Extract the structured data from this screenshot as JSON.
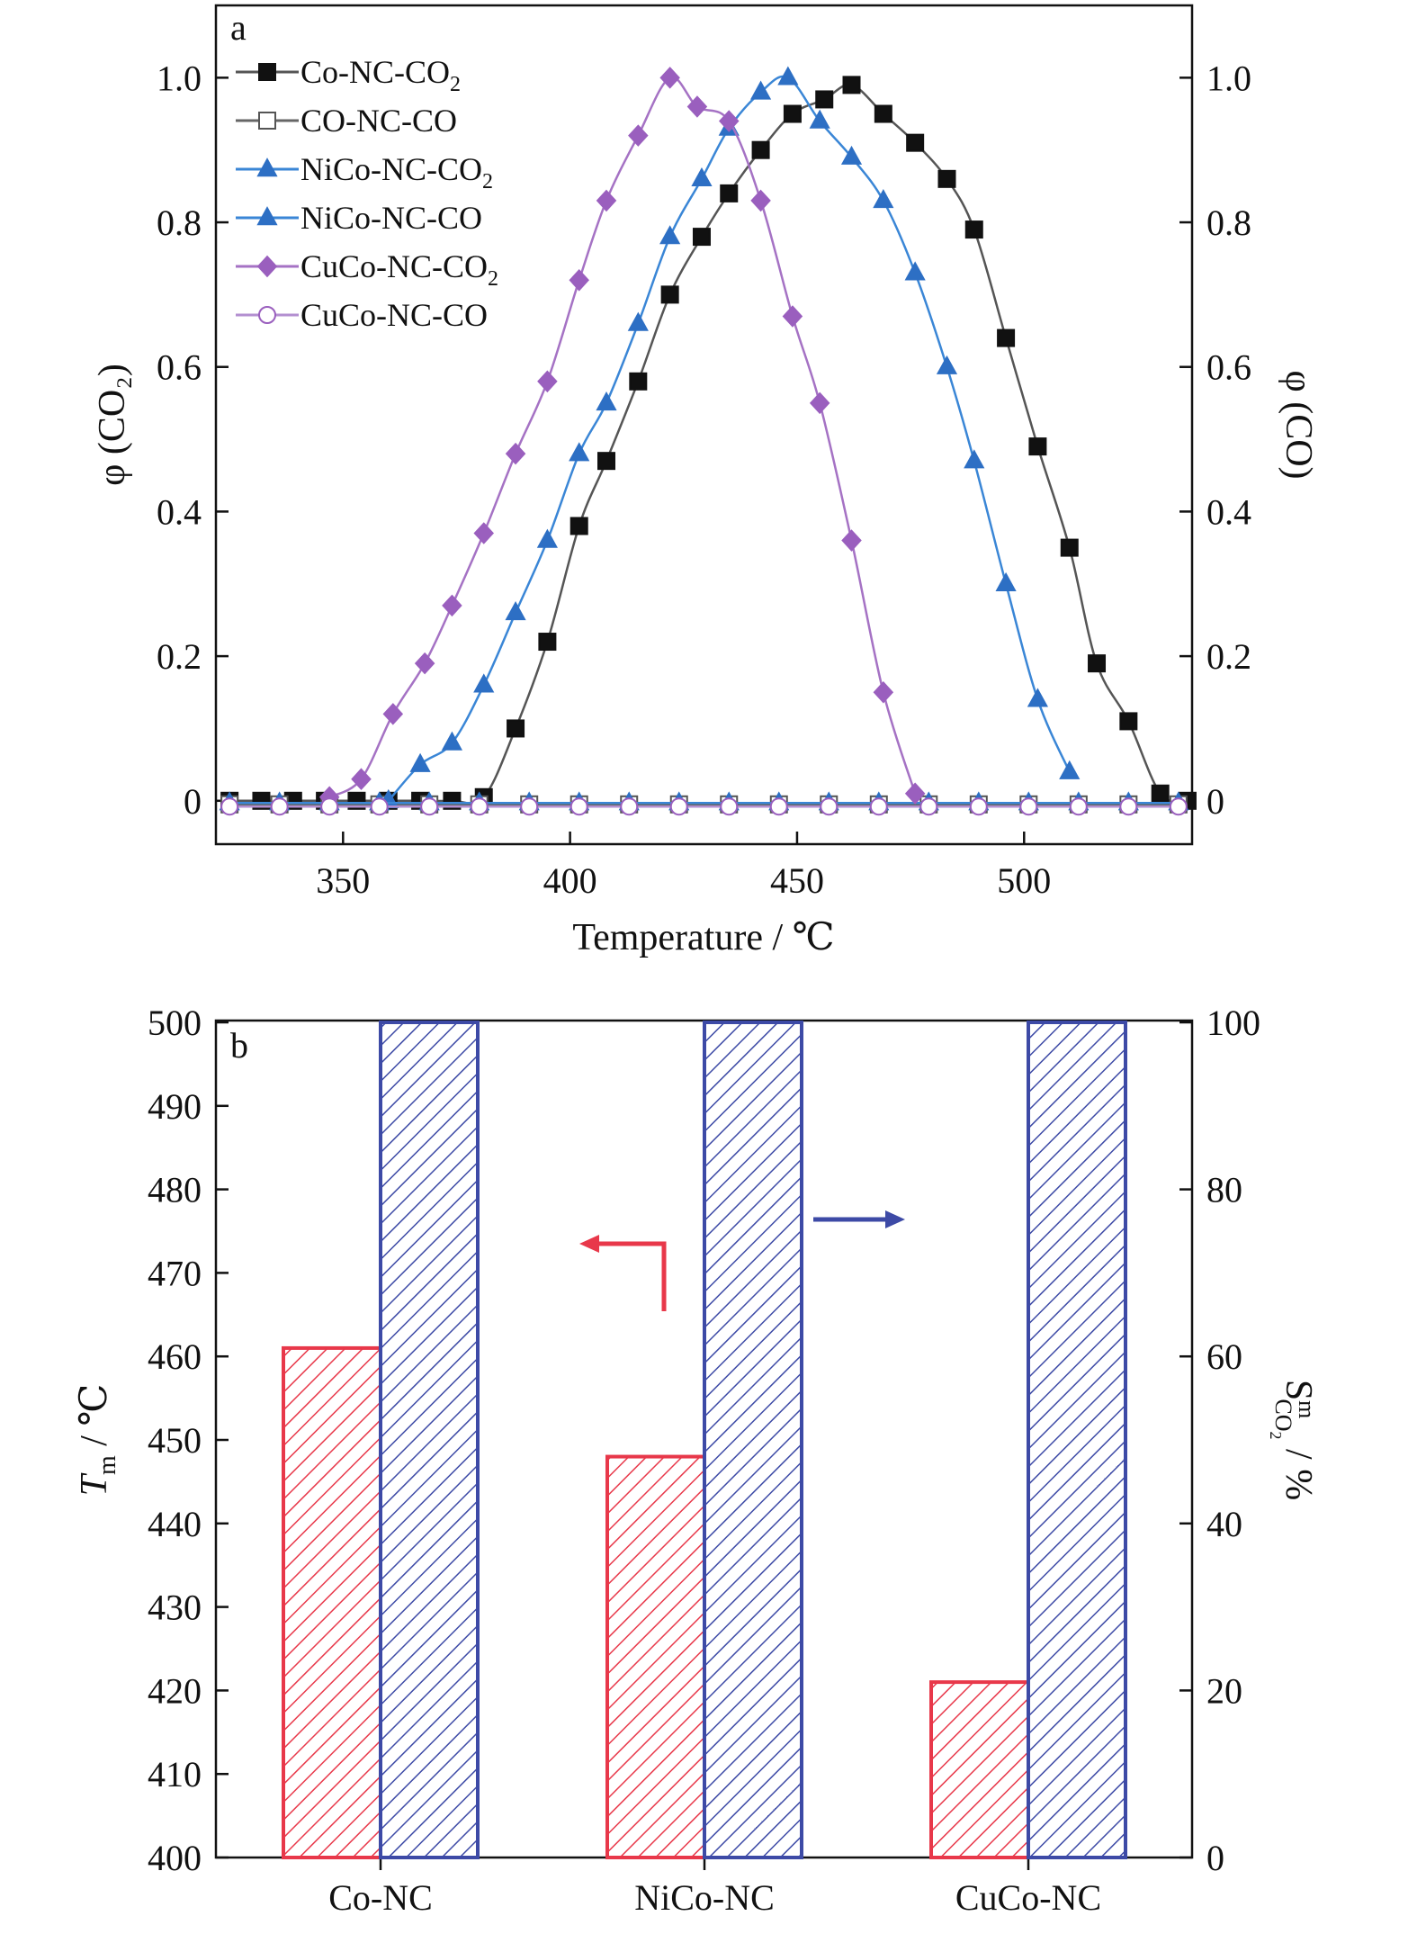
{
  "chart_data": [
    {
      "type": "line",
      "panel_label": "a",
      "xlabel": "Temperature / ℃",
      "ylabel_left": "φ (CO₂)",
      "ylabel_right": "φ (CO)",
      "xlim": [
        322,
        537
      ],
      "ylim": [
        -0.06,
        1.1
      ],
      "xticks": [
        350,
        400,
        450,
        500
      ],
      "yticks": [
        0,
        0.2,
        0.4,
        0.6,
        0.8,
        1.0
      ],
      "ytick_labels": [
        "0",
        "0.2",
        "0.4",
        "0.6",
        "0.8",
        "1.0"
      ],
      "grid": false,
      "legend": "top-left",
      "series": [
        {
          "name": "Co-NC-CO2",
          "label_main": "Co-NC-CO",
          "label_sub": "2",
          "color": "#555555",
          "marker_color": "#111111",
          "marker": "square",
          "filled": true,
          "x": [
            325,
            332,
            339,
            346,
            353,
            360,
            367,
            374,
            381,
            388,
            395,
            402,
            408,
            415,
            422,
            429,
            435,
            442,
            449,
            456,
            462,
            469,
            476,
            483,
            489,
            496,
            503,
            510,
            516,
            523,
            530,
            536
          ],
          "y": [
            0,
            0,
            0,
            0,
            0,
            0,
            0,
            0,
            0.005,
            0.1,
            0.22,
            0.38,
            0.47,
            0.58,
            0.7,
            0.78,
            0.84,
            0.9,
            0.95,
            0.97,
            0.99,
            0.95,
            0.91,
            0.86,
            0.79,
            0.64,
            0.49,
            0.35,
            0.19,
            0.11,
            0.01,
            0
          ]
        },
        {
          "name": "CO-NC-CO",
          "label_main": "CO-NC-CO",
          "label_sub": "",
          "color": "#666666",
          "marker_color": "#555555",
          "marker": "square",
          "filled": false,
          "x": [
            325,
            336,
            347,
            358,
            369,
            380,
            391,
            402,
            413,
            424,
            435,
            446,
            457,
            468,
            479,
            490,
            501,
            512,
            523,
            534
          ],
          "y": [
            -0.005,
            -0.005,
            -0.005,
            -0.005,
            -0.005,
            -0.005,
            -0.005,
            -0.005,
            -0.005,
            -0.005,
            -0.005,
            -0.005,
            -0.005,
            -0.005,
            -0.005,
            -0.005,
            -0.005,
            -0.005,
            -0.005,
            -0.005
          ]
        },
        {
          "name": "NiCo-NC-CO2",
          "label_main": "NiCo-NC-CO",
          "label_sub": "2",
          "color": "#3a86d6",
          "marker_color": "#2d6fc4",
          "marker": "triangle",
          "filled": true,
          "x": [
            360,
            367,
            374,
            381,
            388,
            395,
            402,
            408,
            415,
            422,
            429,
            435,
            442,
            448,
            455,
            462,
            469,
            476,
            483,
            489,
            496,
            503,
            510
          ],
          "y": [
            0,
            0.05,
            0.08,
            0.16,
            0.26,
            0.36,
            0.48,
            0.55,
            0.66,
            0.78,
            0.86,
            0.93,
            0.98,
            1.0,
            0.94,
            0.89,
            0.83,
            0.73,
            0.6,
            0.47,
            0.3,
            0.14,
            0.04
          ]
        },
        {
          "name": "NiCo-NC-CO",
          "label_main": "NiCo-NC-CO",
          "label_sub": "",
          "color": "#3a86d6",
          "marker_color": "#2d6fc4",
          "marker": "triangle",
          "filled": true,
          "x": [
            325,
            336,
            347,
            358,
            369,
            380,
            391,
            402,
            413,
            424,
            435,
            446,
            457,
            468,
            479,
            490,
            501,
            512,
            523,
            534
          ],
          "y": [
            -0.003,
            -0.003,
            -0.003,
            -0.003,
            -0.003,
            -0.003,
            -0.003,
            -0.003,
            -0.003,
            -0.003,
            -0.003,
            -0.003,
            -0.003,
            -0.003,
            -0.003,
            -0.003,
            -0.003,
            -0.003,
            -0.003,
            -0.003
          ]
        },
        {
          "name": "CuCo-NC-CO2",
          "label_main": "CuCo-NC-CO",
          "label_sub": "2",
          "color": "#a572c4",
          "marker_color": "#9a5fbe",
          "marker": "diamond",
          "filled": true,
          "x": [
            347,
            354,
            361,
            368,
            374,
            381,
            388,
            395,
            402,
            408,
            415,
            422,
            428,
            435,
            442,
            449,
            455,
            462,
            469,
            476
          ],
          "y": [
            0.005,
            0.03,
            0.12,
            0.19,
            0.27,
            0.37,
            0.48,
            0.58,
            0.72,
            0.83,
            0.92,
            1.0,
            0.96,
            0.94,
            0.83,
            0.67,
            0.55,
            0.36,
            0.15,
            0.01
          ]
        },
        {
          "name": "CuCo-NC-CO",
          "label_main": "CuCo-NC-CO",
          "label_sub": "",
          "color": "#b38fd0",
          "marker_color": "#9a5fbe",
          "marker": "circle",
          "filled": false,
          "x": [
            325,
            336,
            347,
            358,
            369,
            380,
            391,
            402,
            413,
            424,
            435,
            446,
            457,
            468,
            479,
            490,
            501,
            512,
            523,
            534
          ],
          "y": [
            -0.008,
            -0.008,
            -0.008,
            -0.008,
            -0.008,
            -0.008,
            -0.008,
            -0.008,
            -0.008,
            -0.008,
            -0.008,
            -0.008,
            -0.008,
            -0.008,
            -0.008,
            -0.008,
            -0.008,
            -0.008,
            -0.008,
            -0.008
          ]
        }
      ]
    },
    {
      "type": "bar",
      "panel_label": "b",
      "categories": [
        "Co-NC",
        "NiCo-NC",
        "CuCo-NC"
      ],
      "ylabel_left": "Tm / ℃",
      "ylabel_right": "S m CO2 / %",
      "ylim_left": [
        400,
        500
      ],
      "ylim_right": [
        0,
        100
      ],
      "yticks_left": [
        400,
        410,
        420,
        430,
        440,
        450,
        460,
        470,
        480,
        490,
        500
      ],
      "yticks_right": [
        0,
        20,
        40,
        60,
        80,
        100
      ],
      "grid": false,
      "series": [
        {
          "name": "Tm",
          "axis": "left",
          "color": "#e8384a",
          "values": [
            461,
            448,
            421
          ]
        },
        {
          "name": "S CO2",
          "axis": "right",
          "color": "#3d4aa6",
          "values": [
            100,
            100,
            100
          ]
        }
      ]
    }
  ]
}
